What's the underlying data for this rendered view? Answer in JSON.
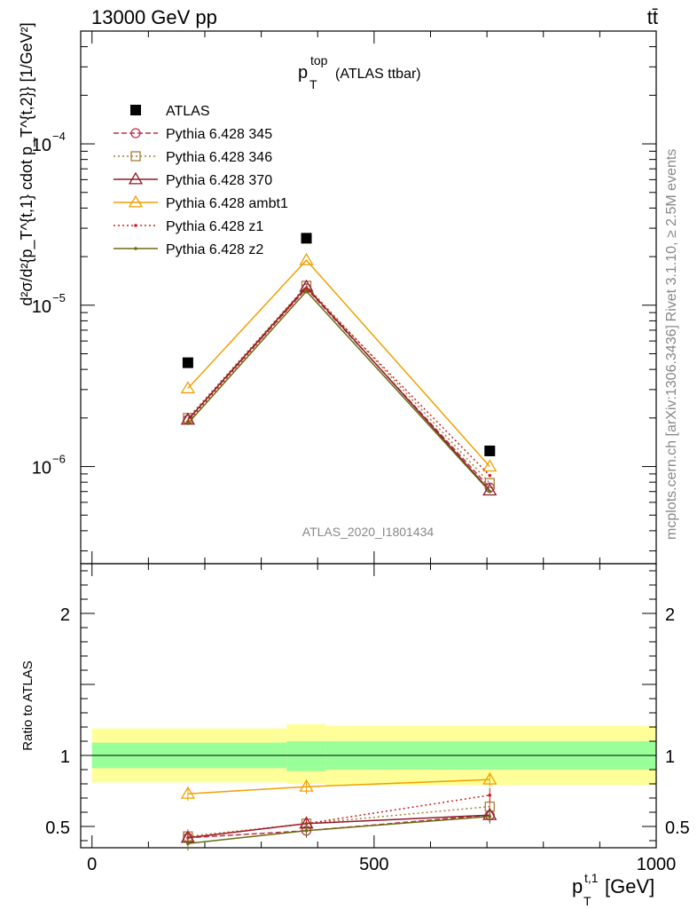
{
  "header": {
    "energy_label": "13000 GeV pp",
    "process_label": "tt̄"
  },
  "side_labels": {
    "rivet": "Rivet 3.1.10, ≥ 2.5M events",
    "mcplots": "mcplots.cern.ch [arXiv:1306.3436]"
  },
  "chart_data": [
    {
      "type": "line",
      "panel": "main",
      "title_main": "p",
      "title_sup": "top",
      "title_sub": "T",
      "title_suffix": "(ATLAS ttbar)",
      "ylabel": "d²σ/d²{p_T^{t,1} cdot p_T^{t,2}} [1/GeV²]",
      "yscale": "log",
      "ylim": [
        2.5e-07,
        0.0005
      ],
      "xlim": [
        -20,
        1000
      ],
      "y_ticks": [
        {
          "value": 1e-06,
          "label": "10",
          "exp": "−6"
        },
        {
          "value": 1e-05,
          "label": "10",
          "exp": "−5"
        },
        {
          "value": 0.0001,
          "label": "10",
          "exp": "−4"
        }
      ],
      "watermark": "ATLAS_2020_I1801434",
      "x": [
        170,
        380,
        705
      ],
      "series": [
        {
          "name": "ATLAS",
          "color": "#000000",
          "marker": "square-filled",
          "line": "none",
          "values": [
            4.4e-06,
            2.6e-05,
            1.25e-06
          ]
        },
        {
          "name": "Pythia 6.428 345",
          "color": "#c0304a",
          "marker": "circle-open",
          "line": "dashed",
          "values": [
            1.95e-06,
            1.27e-05,
            7.4e-07
          ]
        },
        {
          "name": "Pythia 6.428 346",
          "color": "#a87c3a",
          "marker": "square-open",
          "line": "dotted",
          "values": [
            2e-06,
            1.32e-05,
            7.9e-07
          ]
        },
        {
          "name": "Pythia 6.428 370",
          "color": "#8b1a2a",
          "marker": "triangle-open",
          "line": "solid",
          "values": [
            1.95e-06,
            1.3e-05,
            7.1e-07
          ]
        },
        {
          "name": "Pythia 6.428 ambt1",
          "color": "#f0a000",
          "marker": "triangle-open",
          "line": "solid",
          "values": [
            3.05e-06,
            1.9e-05,
            1e-06
          ]
        },
        {
          "name": "Pythia 6.428 z1",
          "color": "#cc2020",
          "marker": "dot",
          "line": "dotted",
          "values": [
            1.9e-06,
            1.27e-05,
            8.8e-07
          ]
        },
        {
          "name": "Pythia 6.428 z2",
          "color": "#6b6b10",
          "marker": "dot",
          "line": "solid",
          "values": [
            1.85e-06,
            1.22e-05,
            7e-07
          ]
        }
      ]
    },
    {
      "type": "line",
      "panel": "ratio",
      "ylabel": "Ratio to ATLAS",
      "xlabel_main": "p",
      "xlabel_sub": "T",
      "xlabel_sup": "t,1",
      "xlabel_unit": "[GeV]",
      "xlim": [
        -20,
        1000
      ],
      "ylim": [
        0.35,
        2.35
      ],
      "x_ticks": [
        {
          "value": 0,
          "label": "0"
        },
        {
          "value": 500,
          "label": "500"
        },
        {
          "value": 1000,
          "label": "1000"
        }
      ],
      "y_ticks": [
        {
          "value": 0.5,
          "label": "0.5"
        },
        {
          "value": 1,
          "label": "1"
        },
        {
          "value": 2,
          "label": "2"
        }
      ],
      "bands": [
        {
          "x0": 0,
          "x1": 345,
          "inner": [
            0.91,
            1.09
          ],
          "outer": [
            0.81,
            1.19
          ]
        },
        {
          "x0": 345,
          "x1": 415,
          "inner": [
            0.89,
            1.1
          ],
          "outer": [
            0.8,
            1.22
          ]
        },
        {
          "x0": 415,
          "x1": 1000,
          "inner": [
            0.9,
            1.1
          ],
          "outer": [
            0.79,
            1.21
          ]
        }
      ],
      "band_colors": {
        "inner": "#99ff99",
        "outer": "#ffff99"
      },
      "x": [
        170,
        380,
        705
      ],
      "series": [
        {
          "name": "Pythia 6.428 345",
          "values": [
            0.42,
            0.47,
            0.58
          ]
        },
        {
          "name": "Pythia 6.428 346",
          "values": [
            0.43,
            0.52,
            0.64
          ]
        },
        {
          "name": "Pythia 6.428 370",
          "values": [
            0.42,
            0.52,
            0.58
          ]
        },
        {
          "name": "Pythia 6.428 ambt1",
          "values": [
            0.73,
            0.78,
            0.83
          ]
        },
        {
          "name": "Pythia 6.428 z1",
          "values": [
            0.42,
            0.52,
            0.72
          ]
        },
        {
          "name": "Pythia 6.428 z2",
          "values": [
            0.38,
            0.47,
            0.57
          ]
        }
      ]
    }
  ]
}
